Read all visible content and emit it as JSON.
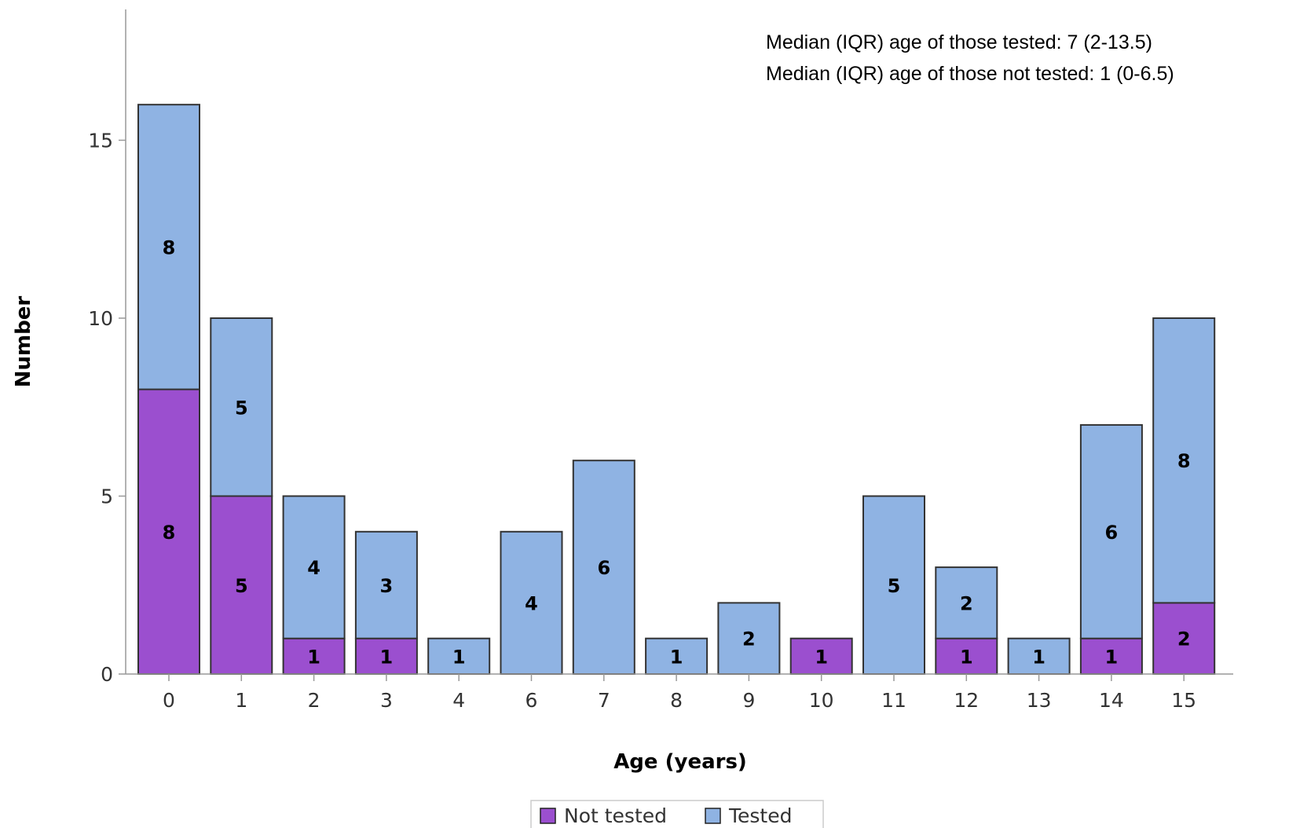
{
  "chart_data": {
    "type": "bar",
    "stacked": true,
    "categories": [
      "0",
      "1",
      "2",
      "3",
      "4",
      "6",
      "7",
      "8",
      "9",
      "10",
      "11",
      "12",
      "13",
      "14",
      "15"
    ],
    "series": [
      {
        "name": "Not tested",
        "color": "#9b4fcf",
        "values": [
          8,
          5,
          1,
          1,
          0,
          0,
          0,
          0,
          0,
          1,
          0,
          1,
          0,
          1,
          2
        ]
      },
      {
        "name": "Tested",
        "color": "#8fb3e3",
        "values": [
          8,
          5,
          4,
          3,
          1,
          4,
          6,
          1,
          2,
          0,
          5,
          2,
          1,
          6,
          8
        ]
      }
    ],
    "xlabel": "Age (years)",
    "ylabel": "Number",
    "ylim": [
      0,
      15
    ],
    "yticks": [
      "0",
      "5",
      "10",
      "15"
    ],
    "annotations": [
      "Median (IQR) age of those tested: 7 (2-13.5)",
      "Median (IQR) age of those not tested: 1 (0-6.5)"
    ],
    "legend_position": "bottom-center",
    "grid": false
  }
}
